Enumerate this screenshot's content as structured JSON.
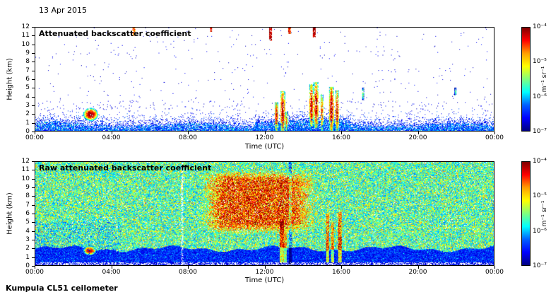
{
  "page": {
    "date_label": "13 Apr 2015",
    "footer_label": "Kumpula CL51 ceilometer",
    "background": "#ffffff"
  },
  "chart_data": [
    {
      "id": "attenuated-backscatter",
      "type": "heatmap",
      "title": "Attenuated backscatter coefficient",
      "xlabel": "Time (UTC)",
      "ylabel": "Height (km)",
      "x_ticks": [
        "00:00",
        "04:00",
        "08:00",
        "12:00",
        "16:00",
        "20:00",
        "00:00"
      ],
      "x_range_hours": [
        0,
        24
      ],
      "y_ticks": [
        0,
        1,
        2,
        3,
        4,
        5,
        6,
        7,
        8,
        9,
        10,
        11,
        12
      ],
      "y_range_km": [
        0,
        12
      ],
      "grid": false,
      "colormap": "jet",
      "colorbar": {
        "scale": "log",
        "range": [
          "1e-4",
          "1e-7"
        ],
        "tick_labels": [
          "10⁻⁴",
          "10⁻⁵",
          "10⁻⁶",
          "10⁻⁷"
        ],
        "unit_label": "m⁻¹ sr⁻¹",
        "gradient": [
          "#7f0000",
          "#ff0000",
          "#ff9f00",
          "#ffff00",
          "#7fff7f",
          "#00ffff",
          "#0060ff",
          "#0000ff",
          "#00007f"
        ]
      },
      "render": {
        "style": "clear",
        "seed": 42,
        "blobs": [
          {
            "t": 2.9,
            "km": 1.9,
            "rt": 0.4,
            "rkm": 0.75,
            "peak_exp": -4.2
          }
        ],
        "plumes": [
          {
            "t": 12.62,
            "w": 0.1,
            "km0": 0.0,
            "km1": 3.3,
            "peak_exp": -4.4
          },
          {
            "t": 12.95,
            "w": 0.12,
            "km0": 0.0,
            "km1": 4.6,
            "peak_exp": -4.2
          },
          {
            "t": 13.15,
            "w": 0.07,
            "km0": 0.0,
            "km1": 2.3,
            "peak_exp": -4.8
          },
          {
            "t": 14.45,
            "w": 0.1,
            "km0": 0.5,
            "km1": 5.4,
            "peak_exp": -4.2
          },
          {
            "t": 14.7,
            "w": 0.12,
            "km0": 0.3,
            "km1": 5.7,
            "peak_exp": -4.3
          },
          {
            "t": 15.0,
            "w": 0.08,
            "km0": 0.0,
            "km1": 4.3,
            "peak_exp": -4.6
          },
          {
            "t": 15.5,
            "w": 0.12,
            "km0": 0.0,
            "km1": 5.1,
            "peak_exp": -4.2
          },
          {
            "t": 15.8,
            "w": 0.1,
            "km0": 0.0,
            "km1": 4.7,
            "peak_exp": -4.4
          },
          {
            "t": 17.15,
            "w": 0.06,
            "km0": 3.6,
            "km1": 5.0,
            "peak_exp": -5.4
          },
          {
            "t": 22.0,
            "w": 0.05,
            "km0": 4.1,
            "km1": 5.0,
            "peak_exp": -5.6
          }
        ],
        "top_marks": [
          {
            "t": 5.15,
            "km0": 11.0,
            "km1": 12,
            "peak_exp": -4.9
          },
          {
            "t": 9.2,
            "km0": 11.5,
            "km1": 12,
            "peak_exp": -4.5
          },
          {
            "t": 12.3,
            "km0": 10.5,
            "km1": 12,
            "peak_exp": -4.3
          },
          {
            "t": 13.3,
            "km0": 11.3,
            "km1": 12,
            "peak_exp": -4.6
          },
          {
            "t": 14.6,
            "km0": 10.9,
            "km1": 12,
            "peak_exp": -4.3
          }
        ]
      }
    },
    {
      "id": "raw-attenuated-backscatter",
      "type": "heatmap",
      "title": "Raw attenuated backscatter coefficient",
      "xlabel": "Time (UTC)",
      "ylabel": "Height (km)",
      "x_ticks": [
        "00:00",
        "04:00",
        "08:00",
        "12:00",
        "16:00",
        "20:00",
        "00:00"
      ],
      "x_range_hours": [
        0,
        24
      ],
      "y_ticks": [
        0,
        1,
        2,
        3,
        4,
        5,
        6,
        7,
        8,
        9,
        10,
        11,
        12
      ],
      "y_range_km": [
        0,
        12
      ],
      "grid": false,
      "colormap": "jet",
      "colorbar": {
        "scale": "log",
        "range": [
          "1e-4",
          "1e-7"
        ],
        "tick_labels": [
          "10⁻⁴",
          "10⁻⁵",
          "10⁻⁶",
          "10⁻⁷"
        ],
        "unit_label": "m⁻¹ sr⁻¹",
        "gradient": [
          "#7f0000",
          "#ff0000",
          "#ff9f00",
          "#ffff00",
          "#7fff7f",
          "#00ffff",
          "#0060ff",
          "#0000ff",
          "#00007f"
        ]
      },
      "render": {
        "style": "raw",
        "seed": 7,
        "bands": {
          "surface_km": 0.3,
          "blue_top_km": 1.9,
          "gap_frac": 0.06
        },
        "cool_region": {
          "t1": 4.5,
          "km1": 5.0,
          "shift": -0.3
        },
        "blobs": [
          {
            "t": 2.85,
            "km": 1.7,
            "rt": 0.35,
            "rkm": 0.55,
            "peak_exp": -4.4
          }
        ],
        "orange_region": {
          "t0": 8.7,
          "t_core0": 9.8,
          "t_core1": 13.4,
          "t1": 14.8,
          "km0": 3.6,
          "km_core0": 4.8,
          "km_core1": 9.9,
          "km1": 11.0,
          "boost_exp": 1.5
        },
        "streaks": [
          {
            "t": 12.9,
            "w": 0.1,
            "km1": 5.2,
            "boost": 1.9
          },
          {
            "t": 13.1,
            "w": 0.07,
            "km1": 4.0,
            "boost": 1.5
          },
          {
            "t": 15.3,
            "w": 0.09,
            "km1": 6.0,
            "boost": 1.7
          },
          {
            "t": 15.55,
            "w": 0.08,
            "km1": 5.0,
            "boost": 1.5
          },
          {
            "t": 15.95,
            "w": 0.1,
            "km1": 6.2,
            "boost": 1.9
          }
        ],
        "dark_columns": [
          {
            "t": 7.7,
            "w": 0.06,
            "drop": 0.0,
            "pale": 0.45
          },
          {
            "t": 13.35,
            "w": 0.06,
            "drop": 0.55,
            "pale": 0
          }
        ]
      }
    }
  ]
}
